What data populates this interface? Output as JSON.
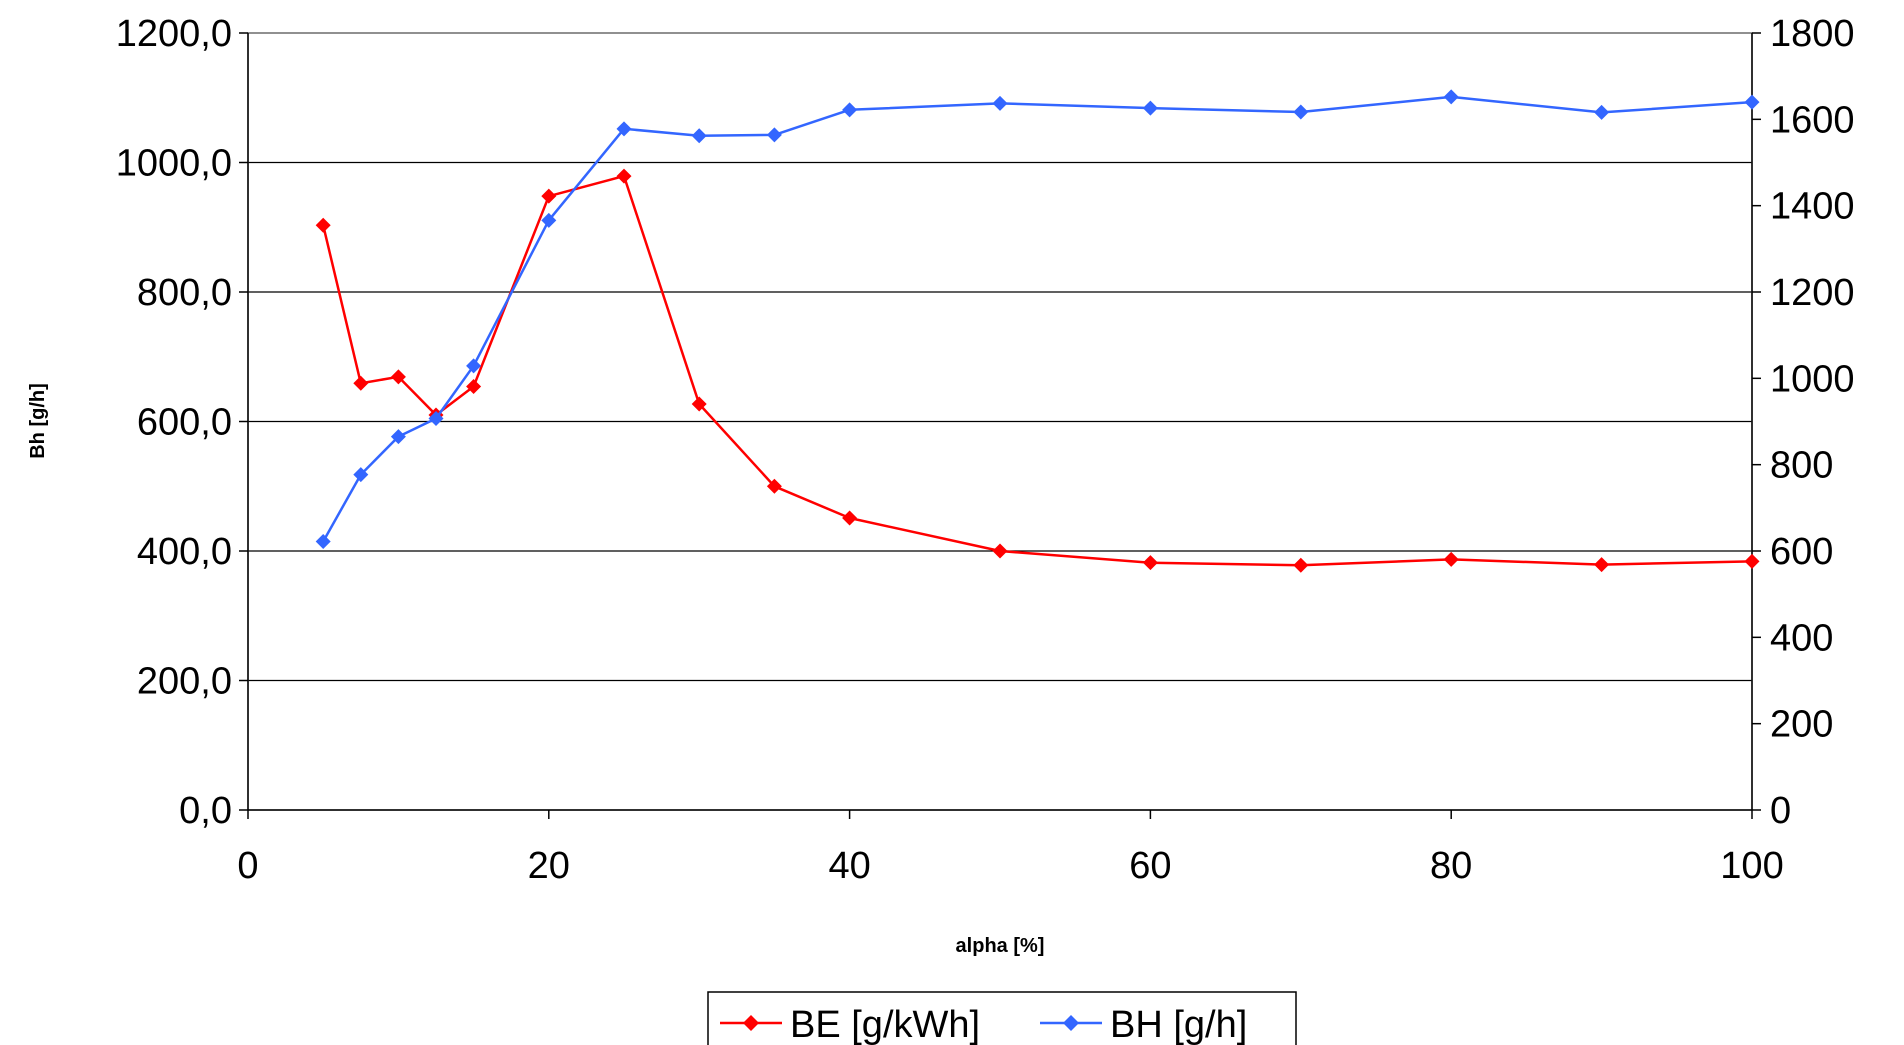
{
  "chart_data": {
    "type": "line",
    "xlabel": "alpha [%]",
    "ylabel": "Bh [g/h]",
    "y2label": "",
    "xlim": [
      0,
      100
    ],
    "ylim": [
      0,
      1200
    ],
    "y2lim": [
      0,
      1800
    ],
    "x_ticks": [
      "0",
      "20",
      "40",
      "60",
      "80",
      "100"
    ],
    "y_ticks": [
      "0,0",
      "200,0",
      "400,0",
      "600,0",
      "800,0",
      "1000,0",
      "1200,0"
    ],
    "y2_ticks": [
      "0",
      "200",
      "400",
      "600",
      "800",
      "1000",
      "1200",
      "1400",
      "1600",
      "1800"
    ],
    "grid": "horizontal",
    "legend_position": "bottom-center",
    "series": [
      {
        "name": "BE [g/kWh]",
        "axis": "left",
        "color": "#ff0000",
        "marker": "diamond",
        "x": [
          5,
          7.5,
          10,
          12.5,
          15,
          20,
          25,
          30,
          35,
          40,
          50,
          60,
          70,
          80,
          90,
          100
        ],
        "values": [
          903,
          659,
          669,
          610,
          654,
          948,
          979,
          627,
          500,
          451,
          400,
          382,
          378,
          387,
          379,
          384
        ]
      },
      {
        "name": "BH [g/h]",
        "axis": "right",
        "color": "#3366ff",
        "marker": "diamond",
        "x": [
          5,
          7.5,
          10,
          12.5,
          15,
          20,
          25,
          30,
          35,
          40,
          50,
          60,
          70,
          80,
          90,
          100
        ],
        "values": [
          622,
          777,
          865,
          907,
          1029,
          1366,
          1578,
          1562,
          1564,
          1622,
          1637,
          1626,
          1617,
          1652,
          1616,
          1640
        ]
      }
    ]
  }
}
